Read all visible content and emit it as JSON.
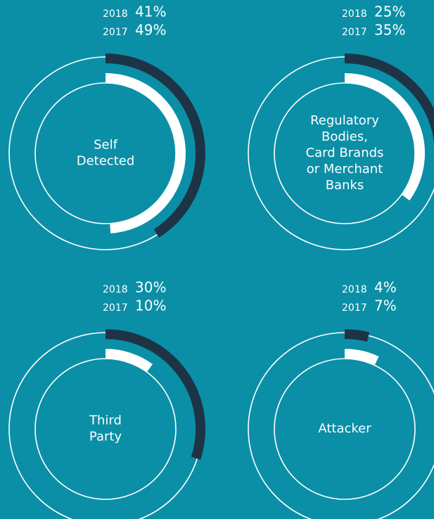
{
  "chart_data": [
    {
      "type": "radial",
      "title": [
        "Self",
        "Detected"
      ],
      "series": [
        {
          "name": "2018",
          "color": "#1d3446",
          "values": [
            41
          ],
          "value_labels": [
            "41%"
          ]
        },
        {
          "name": "2017",
          "color": "#ffffff",
          "values": [
            49
          ],
          "value_labels": [
            "49%"
          ]
        }
      ]
    },
    {
      "type": "radial",
      "title": [
        "Regulatory",
        "Bodies,",
        "Card Brands",
        "or Merchant",
        "Banks"
      ],
      "series": [
        {
          "name": "2018",
          "color": "#1d3446",
          "values": [
            25
          ],
          "value_labels": [
            "25%"
          ]
        },
        {
          "name": "2017",
          "color": "#ffffff",
          "values": [
            35
          ],
          "value_labels": [
            "35%"
          ]
        }
      ]
    },
    {
      "type": "radial",
      "title": [
        "Third",
        "Party"
      ],
      "series": [
        {
          "name": "2018",
          "color": "#1d3446",
          "values": [
            30
          ],
          "value_labels": [
            "30%"
          ]
        },
        {
          "name": "2017",
          "color": "#ffffff",
          "values": [
            10
          ],
          "value_labels": [
            "10%"
          ]
        }
      ]
    },
    {
      "type": "radial",
      "title": [
        "Attacker"
      ],
      "series": [
        {
          "name": "2018",
          "color": "#1d3446",
          "values": [
            4
          ],
          "value_labels": [
            "4%"
          ]
        },
        {
          "name": "2017",
          "color": "#ffffff",
          "values": [
            7
          ],
          "value_labels": [
            "7%"
          ]
        }
      ]
    }
  ]
}
